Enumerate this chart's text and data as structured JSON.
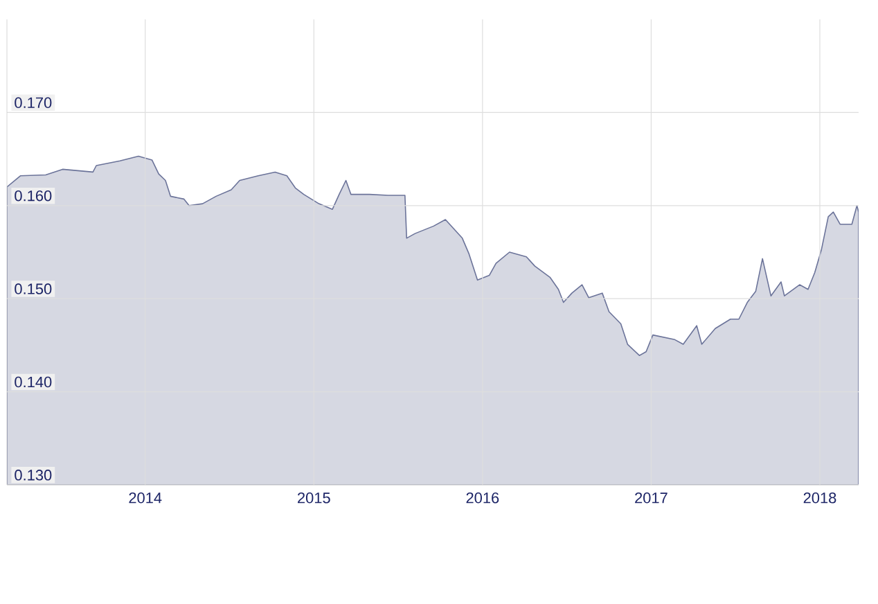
{
  "chart_data": {
    "type": "area",
    "xlim": [
      2013.18,
      2018.23
    ],
    "ylim": [
      0.13,
      0.18
    ],
    "xticks": [
      2014,
      2015,
      2016,
      2017,
      2018
    ],
    "yticks": [
      {
        "value": 0.13,
        "label": "0.130"
      },
      {
        "value": 0.14,
        "label": "0.140"
      },
      {
        "value": 0.15,
        "label": "0.150"
      },
      {
        "value": 0.16,
        "label": "0.160"
      },
      {
        "value": 0.17,
        "label": "0.170"
      }
    ],
    "grid": true,
    "series": [
      {
        "color": "#6b7399",
        "x": [
          2013.18,
          2013.26,
          2013.41,
          2013.51,
          2013.69,
          2013.71,
          2013.85,
          2013.96,
          2014.04,
          2014.08,
          2014.12,
          2014.15,
          2014.23,
          2014.26,
          2014.34,
          2014.42,
          2014.51,
          2014.56,
          2014.67,
          2014.77,
          2014.84,
          2014.89,
          2014.94,
          2015.03,
          2015.11,
          2015.15,
          2015.19,
          2015.22,
          2015.33,
          2015.44,
          2015.54,
          2015.55,
          2015.6,
          2015.71,
          2015.78,
          2015.88,
          2015.92,
          2015.97,
          2016.04,
          2016.08,
          2016.16,
          2016.26,
          2016.31,
          2016.4,
          2016.45,
          2016.48,
          2016.53,
          2016.59,
          2016.63,
          2016.71,
          2016.75,
          2016.82,
          2016.86,
          2016.93,
          2016.97,
          2017.01,
          2017.14,
          2017.19,
          2017.27,
          2017.3,
          2017.38,
          2017.47,
          2017.52,
          2017.57,
          2017.62,
          2017.66,
          2017.71,
          2017.77,
          2017.79,
          2017.88,
          2017.93,
          2017.97,
          2018.01,
          2018.05,
          2018.08,
          2018.12,
          2018.19,
          2018.22,
          2018.23
        ],
        "values": [
          0.162,
          0.1632,
          0.1633,
          0.1639,
          0.1636,
          0.1643,
          0.1648,
          0.1653,
          0.1649,
          0.1634,
          0.1627,
          0.161,
          0.1607,
          0.16,
          0.1602,
          0.161,
          0.1617,
          0.1627,
          0.1632,
          0.1636,
          0.1632,
          0.1619,
          0.1612,
          0.1602,
          0.1596,
          0.1612,
          0.1627,
          0.1612,
          0.1612,
          0.1611,
          0.1611,
          0.1565,
          0.157,
          0.1578,
          0.1585,
          0.1565,
          0.1548,
          0.152,
          0.1525,
          0.1538,
          0.155,
          0.1545,
          0.1535,
          0.1523,
          0.151,
          0.1496,
          0.1506,
          0.1515,
          0.1501,
          0.1506,
          0.1486,
          0.1473,
          0.1451,
          0.1439,
          0.1443,
          0.1461,
          0.1456,
          0.1451,
          0.1471,
          0.1451,
          0.1468,
          0.1478,
          0.1478,
          0.1496,
          0.1508,
          0.1543,
          0.1503,
          0.1518,
          0.1503,
          0.1515,
          0.151,
          0.1528,
          0.1553,
          0.1588,
          0.1593,
          0.158,
          0.158,
          0.16,
          0.1593
        ]
      }
    ]
  }
}
